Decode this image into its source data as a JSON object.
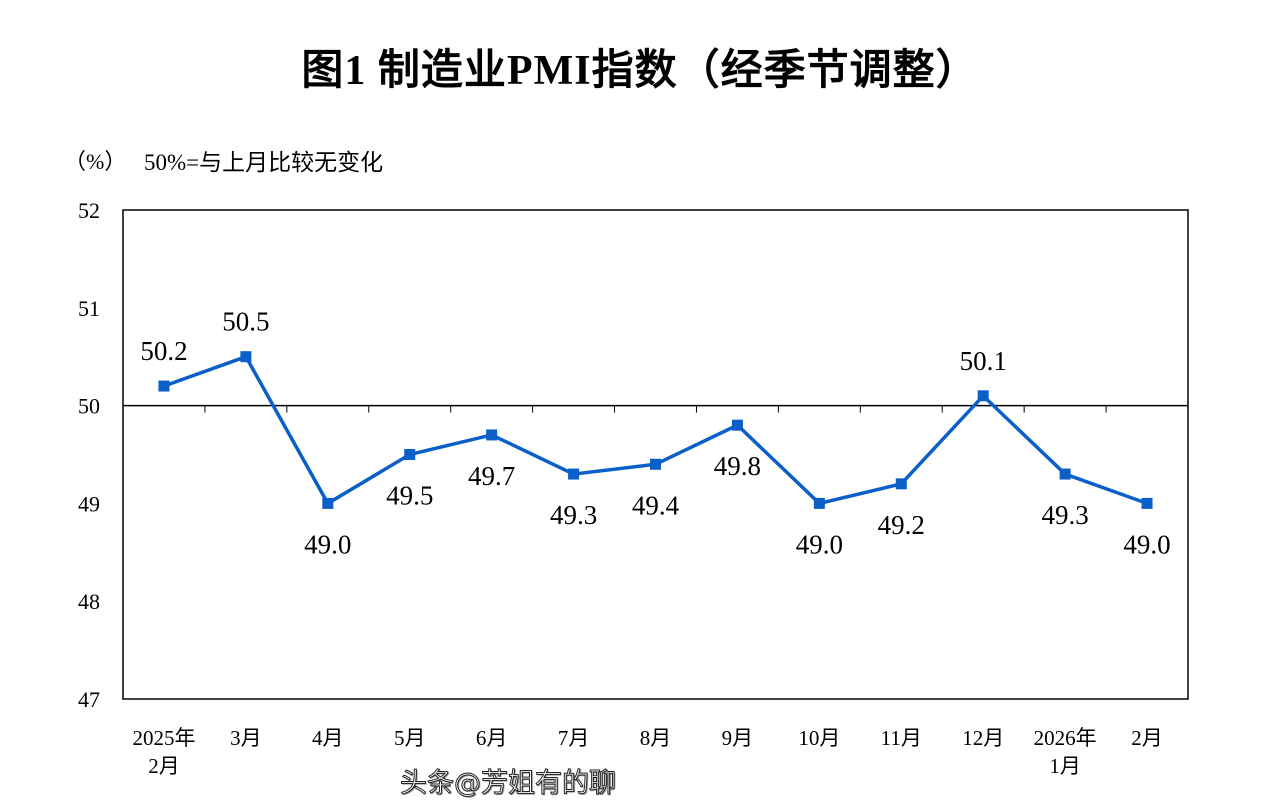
{
  "chart_data": {
    "type": "line",
    "title": "图1  制造业PMI指数（经季节调整）",
    "ylabel": "（%）",
    "annotation": "50%=与上月比较无变化",
    "categories": [
      "2025年\n2月",
      "3月",
      "4月",
      "5月",
      "6月",
      "7月",
      "8月",
      "9月",
      "10月",
      "11月",
      "12月",
      "2026年\n1月",
      "2月"
    ],
    "values": [
      50.2,
      50.5,
      49.0,
      49.5,
      49.7,
      49.3,
      49.4,
      49.8,
      49.0,
      49.2,
      50.1,
      49.3,
      49.0
    ],
    "data_labels": [
      "50.2",
      "50.5",
      "49.0",
      "49.5",
      "49.7",
      "49.3",
      "49.4",
      "49.8",
      "49.0",
      "49.2",
      "50.1",
      "49.3",
      "49.0"
    ],
    "ylim": [
      47,
      52
    ],
    "yticks": [
      "47",
      "48",
      "49",
      "50",
      "51",
      "52"
    ],
    "reference_line": 50,
    "grid": false,
    "legend": "none",
    "line_color": "#0a5fc8"
  },
  "watermark": "头条@芳姐有的聊"
}
